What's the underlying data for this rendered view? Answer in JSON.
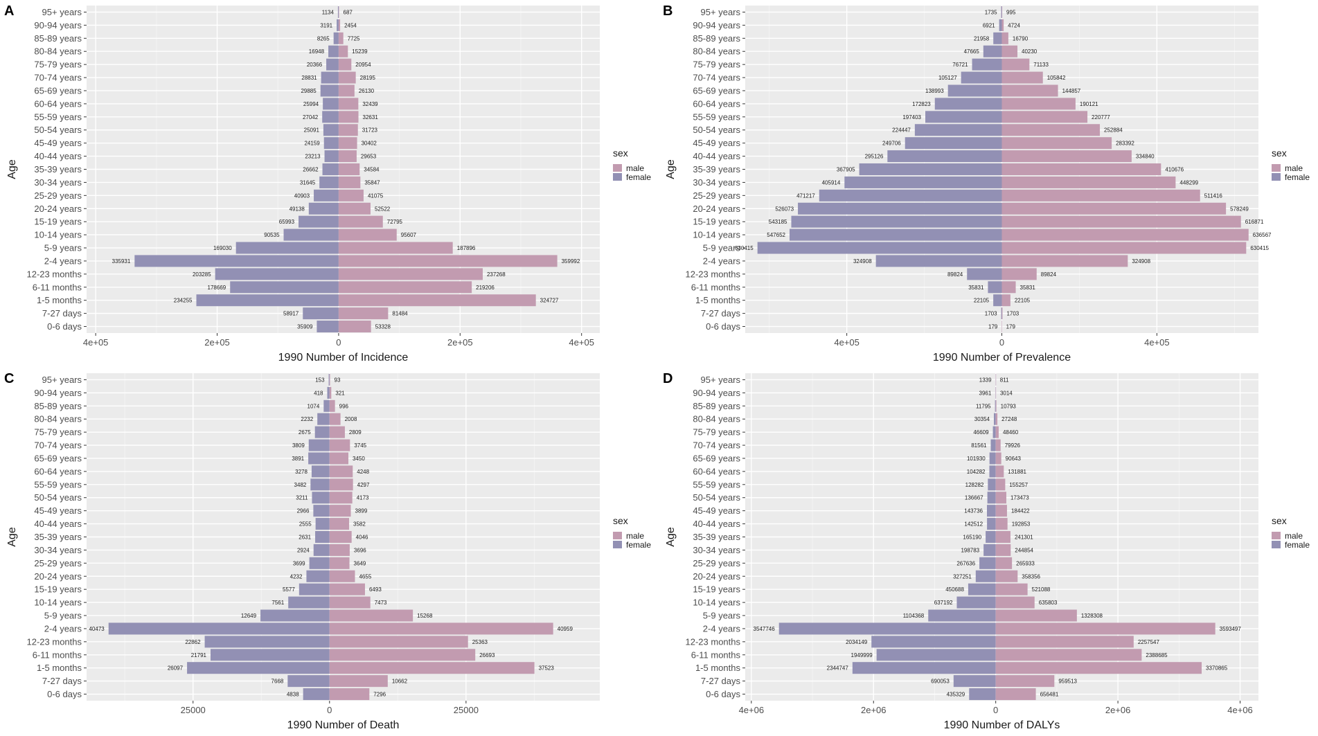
{
  "colors": {
    "male": "#c29bb0",
    "female": "#9290b4",
    "panel_bg": "#ebebeb",
    "grid_major": "#ffffff"
  },
  "age_groups": [
    "0-6 days",
    "7-27 days",
    "1-5 months",
    "6-11 months",
    "12-23 months",
    "2-4 years",
    "5-9 years",
    "10-14 years",
    "15-19 years",
    "20-24 years",
    "25-29 years",
    "30-34 years",
    "35-39 years",
    "40-44 years",
    "45-49 years",
    "50-54 years",
    "55-59 years",
    "60-64 years",
    "65-69 years",
    "70-74 years",
    "75-79 years",
    "80-84 years",
    "85-89 years",
    "90-94 years",
    "95+ years"
  ],
  "chart_data": [
    {
      "type": "bar",
      "orientation": "horizontal-population-pyramid",
      "panel_tag": "A",
      "xlabel": "1990 Number of Incidence",
      "ylabel": "Age",
      "xlim": [
        -415000,
        430000
      ],
      "xticks": [
        -400000,
        -200000,
        0,
        200000,
        400000
      ],
      "xtick_labels": [
        "4e+05",
        "2e+05",
        "0",
        "2e+05",
        "4e+05"
      ],
      "legend": {
        "title": "sex",
        "entries": [
          "male",
          "female"
        ]
      },
      "series": [
        {
          "name": "female",
          "values": [
            35909,
            58917,
            234255,
            178669,
            203285,
            335931,
            169030,
            90535,
            65993,
            49138,
            40903,
            31645,
            26662,
            23213,
            24159,
            25091,
            27042,
            25994,
            29885,
            28831,
            20366,
            16948,
            8265,
            3191,
            1134
          ]
        },
        {
          "name": "male",
          "values": [
            53328,
            81484,
            324727,
            219206,
            237268,
            359992,
            187896,
            95607,
            72795,
            52522,
            41075,
            35847,
            34584,
            29653,
            30402,
            31723,
            32631,
            32439,
            26130,
            28195,
            20954,
            15239,
            7725,
            2454,
            687
          ]
        }
      ]
    },
    {
      "type": "bar",
      "orientation": "horizontal-population-pyramid",
      "panel_tag": "B",
      "xlabel": "1990 Number of Prevalence",
      "ylabel": "Age",
      "xlim": [
        -662000,
        662000
      ],
      "xticks": [
        -400000,
        0,
        400000
      ],
      "xtick_labels": [
        "4e+05",
        "0",
        "4e+05"
      ],
      "legend": {
        "title": "sex",
        "entries": [
          "male",
          "female"
        ]
      },
      "series": [
        {
          "name": "female",
          "values": [
            179,
            1703,
            22105,
            35831,
            89824,
            324908,
            630415,
            547652,
            543185,
            526073,
            471217,
            405914,
            367905,
            295126,
            249706,
            224447,
            197403,
            172823,
            138993,
            105127,
            76721,
            47665,
            21958,
            6921,
            1735
          ]
        },
        {
          "name": "male",
          "values": [
            179,
            1703,
            22105,
            35831,
            89824,
            324908,
            630415,
            636567,
            616871,
            578249,
            511416,
            448299,
            410676,
            334840,
            283392,
            252884,
            220777,
            190121,
            144857,
            105842,
            71133,
            40230,
            16790,
            4724,
            995
          ]
        }
      ]
    },
    {
      "type": "bar",
      "orientation": "horizontal-population-pyramid",
      "panel_tag": "C",
      "xlabel": "1990 Number of Death",
      "ylabel": "Age",
      "xlim": [
        -44500,
        49500
      ],
      "xticks": [
        -25000,
        0,
        25000
      ],
      "xtick_labels": [
        "25000",
        "0",
        "25000"
      ],
      "legend": {
        "title": "sex",
        "entries": [
          "male",
          "female"
        ]
      },
      "series": [
        {
          "name": "female",
          "values": [
            4838,
            7668,
            26097,
            21791,
            22862,
            40473,
            12649,
            7561,
            5577,
            4232,
            3699,
            2924,
            2631,
            2555,
            2966,
            3211,
            3482,
            3278,
            3891,
            3809,
            2675,
            2232,
            1074,
            418,
            153
          ]
        },
        {
          "name": "male",
          "values": [
            7296,
            10662,
            37523,
            26693,
            25363,
            40959,
            15268,
            7473,
            6493,
            4655,
            3649,
            3696,
            4046,
            3582,
            3899,
            4173,
            4297,
            4248,
            3450,
            3745,
            2809,
            2008,
            996,
            321,
            93
          ]
        }
      ]
    },
    {
      "type": "bar",
      "orientation": "horizontal-population-pyramid",
      "panel_tag": "D",
      "xlabel": "1990 Number of DALYs",
      "ylabel": "Age",
      "xlim": [
        -4100000,
        4300000
      ],
      "xticks": [
        -4000000,
        -2000000,
        0,
        2000000,
        4000000
      ],
      "xtick_labels": [
        "4e+06",
        "2e+06",
        "0",
        "2e+06",
        "4e+06"
      ],
      "legend": {
        "title": "sex",
        "entries": [
          "male",
          "female"
        ]
      },
      "series": [
        {
          "name": "female",
          "values": [
            435329,
            690053,
            2344747,
            1949999,
            2034149,
            3547746,
            1104368,
            637192,
            450688,
            327251,
            267636,
            198783,
            165190,
            142512,
            143736,
            136667,
            128282,
            104282,
            101930,
            81561,
            46609,
            30354,
            11795,
            3961,
            1339
          ]
        },
        {
          "name": "male",
          "values": [
            656481,
            959513,
            3370865,
            2388685,
            2257547,
            3593497,
            1328308,
            635803,
            521088,
            358356,
            265933,
            244854,
            241301,
            192853,
            184422,
            173473,
            155257,
            131881,
            90643,
            79926,
            48460,
            27248,
            10793,
            3014,
            811
          ]
        }
      ]
    }
  ]
}
